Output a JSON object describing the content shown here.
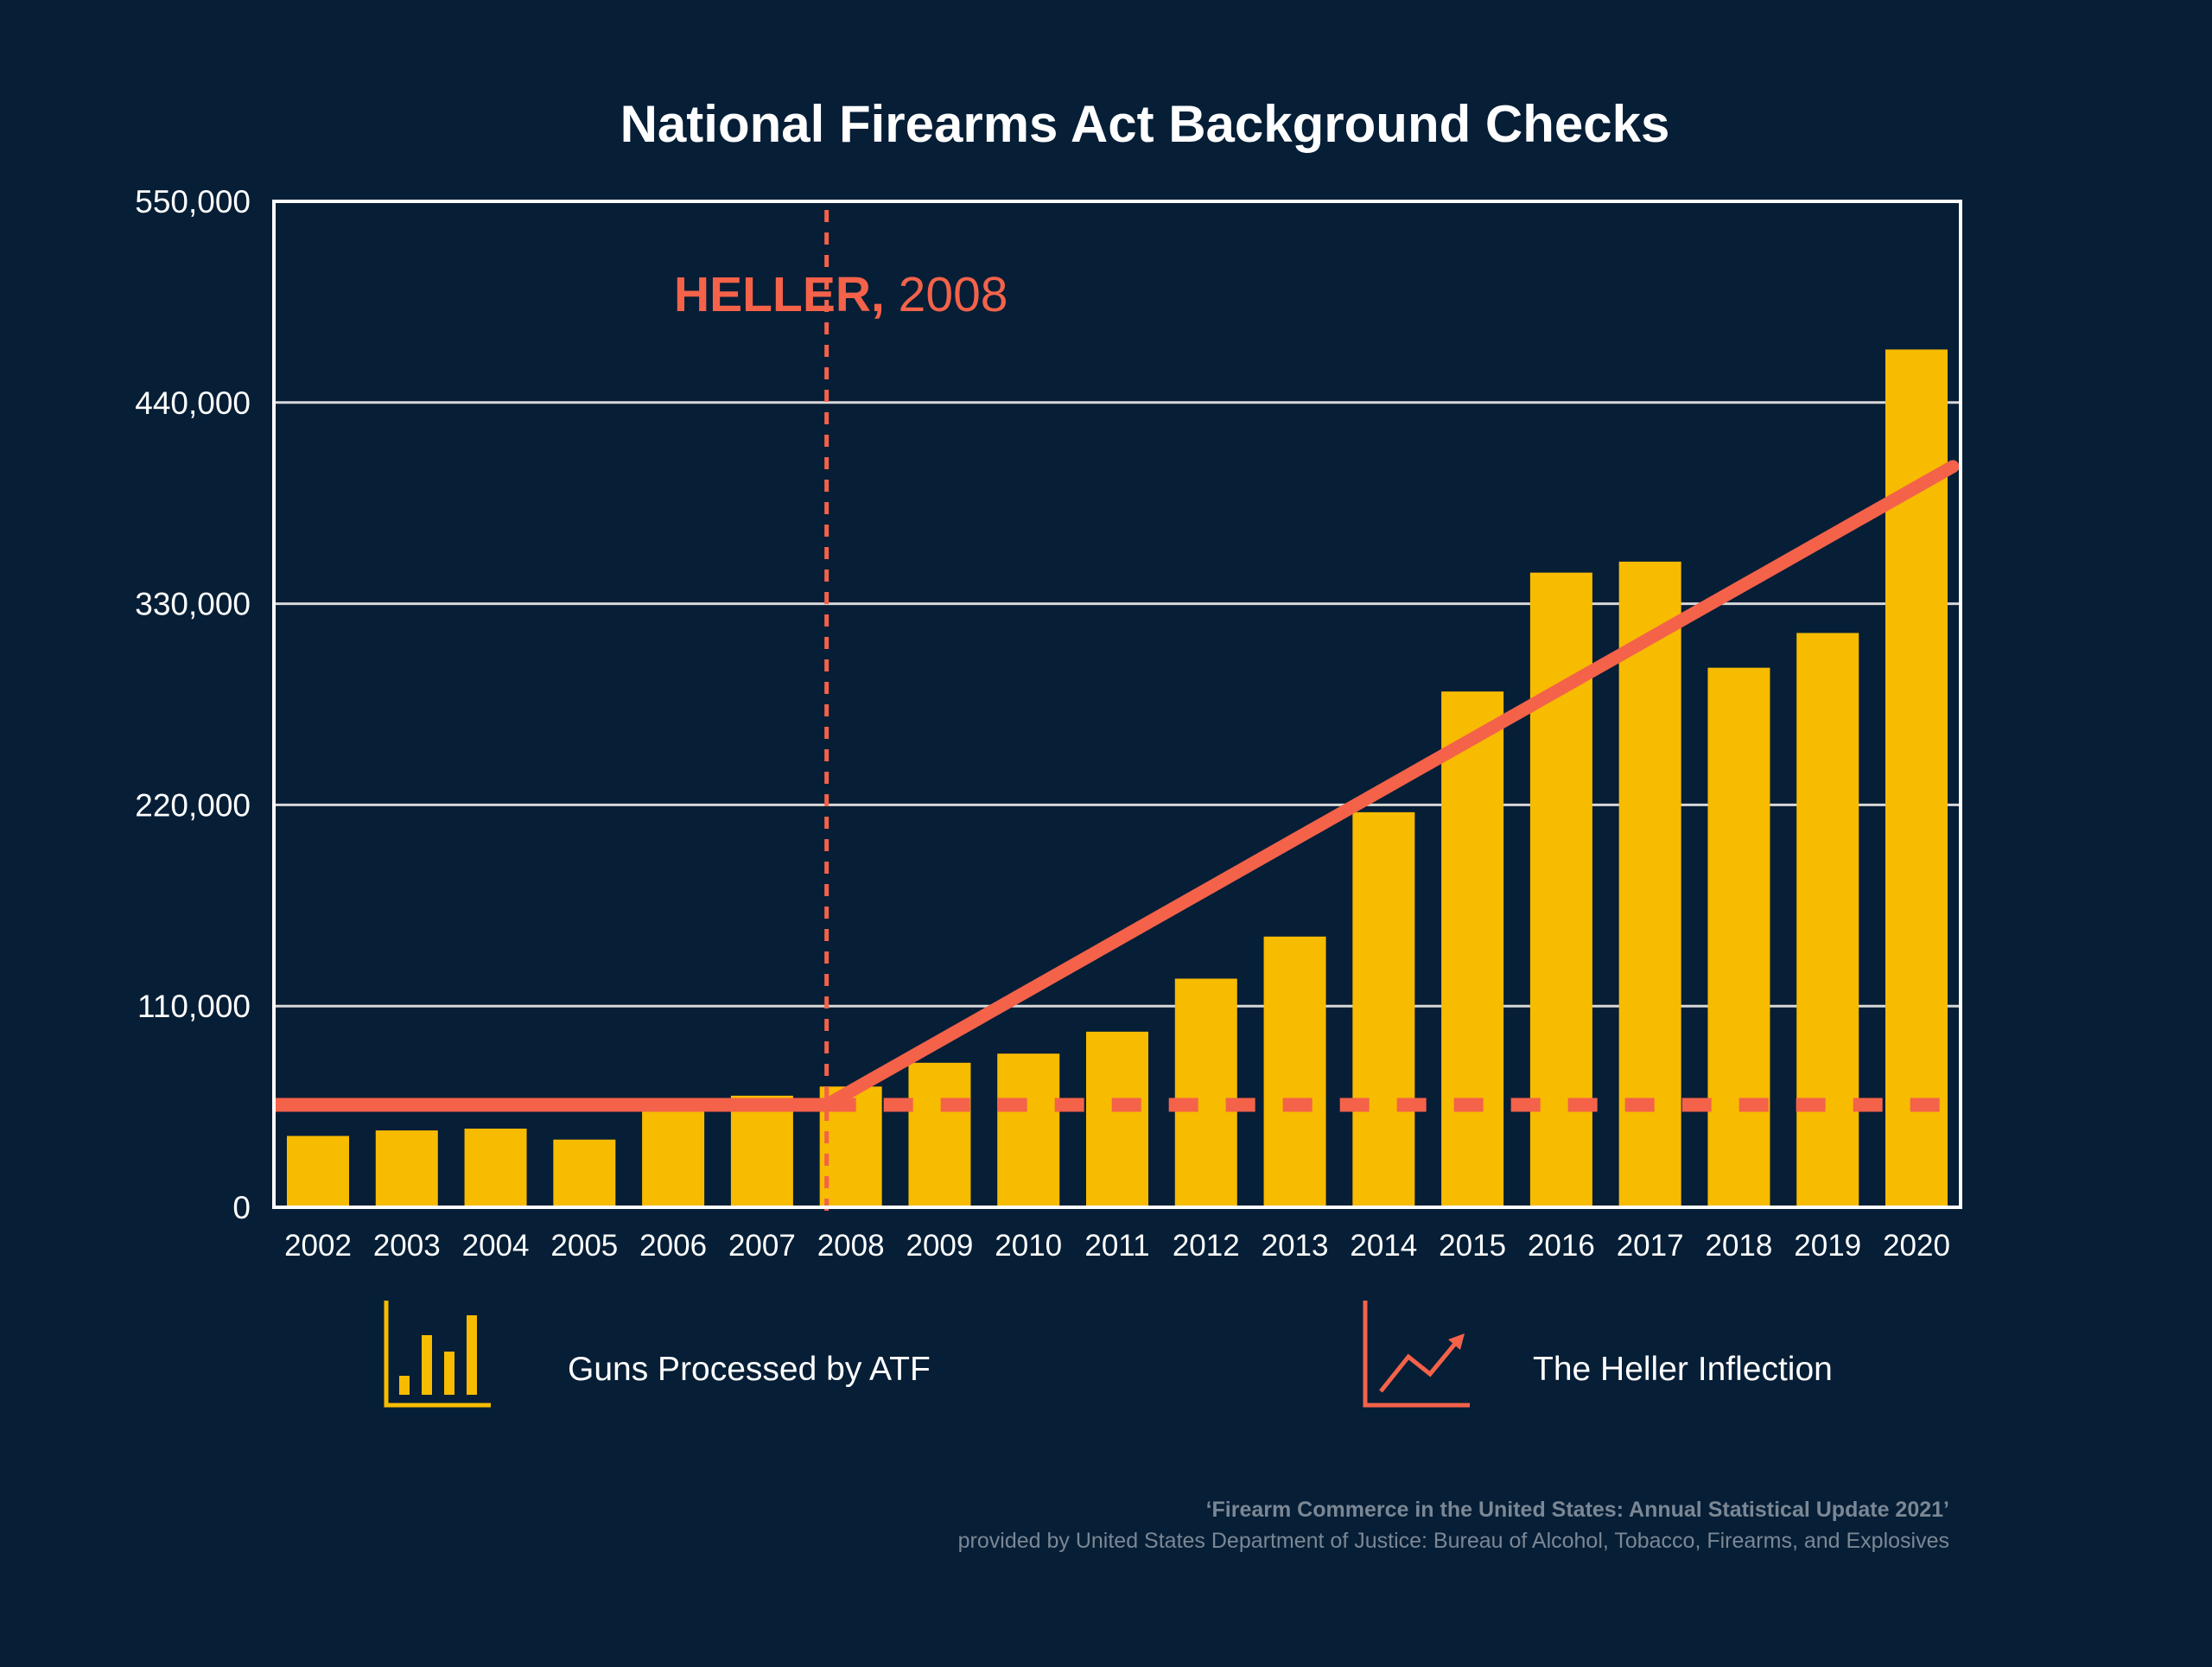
{
  "colors": {
    "background": "#061e36",
    "bar": "#f7bb00",
    "accent": "#f4624a",
    "text": "#ffffff",
    "gridline": "#d8d8d8",
    "source_text": "#7b8794"
  },
  "chart_data": {
    "type": "bar",
    "title": "National Firearms Act Background Checks",
    "xlabel": "",
    "ylabel": "",
    "ylim": [
      0,
      550000
    ],
    "yticks": [
      "0",
      "110,000",
      "220,000",
      "330,000",
      "440,000",
      "550,000"
    ],
    "ytick_values": [
      0,
      110000,
      220000,
      330000,
      440000,
      550000
    ],
    "grid": true,
    "categories": [
      "2002",
      "2003",
      "2004",
      "2005",
      "2006",
      "2007",
      "2008",
      "2009",
      "2010",
      "2011",
      "2012",
      "2013",
      "2014",
      "2015",
      "2016",
      "2017",
      "2018",
      "2019",
      "2020"
    ],
    "series": [
      {
        "name": "Guns Processed by ATF",
        "values": [
          39000,
          42000,
          43000,
          37000,
          53000,
          61000,
          66000,
          79000,
          84000,
          96000,
          125000,
          148000,
          216000,
          282000,
          347000,
          353000,
          295000,
          314000,
          469000
        ]
      }
    ],
    "annotation": {
      "label_bold": "HELLER,",
      "label_rest": " 2008",
      "x": "2008"
    },
    "baseline_value": 56000,
    "trend_line": {
      "name": "The Heller Inflection",
      "start": {
        "x": "2008",
        "y": 56000
      },
      "end": {
        "x": "2020",
        "y": 405000
      }
    },
    "legend": {
      "placement": "bottom",
      "items": [
        {
          "label": "Guns Processed by ATF",
          "icon": "bar-chart-icon"
        },
        {
          "label": "The Heller Inflection",
          "icon": "trend-arrow-icon"
        }
      ]
    },
    "source": {
      "line1": "‘Firearm Commerce in the United States: Annual Statistical Update 2021’",
      "line2": "provided by United States Department of Justice: Bureau of Alcohol, Tobacco, Firearms, and Explosives"
    }
  }
}
